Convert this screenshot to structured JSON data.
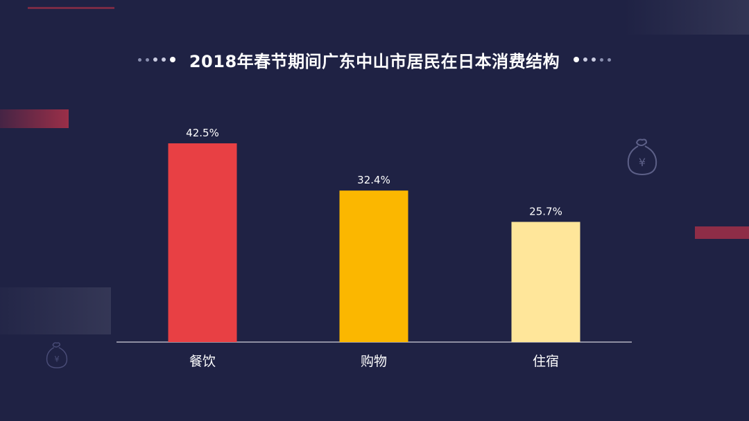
{
  "chart_data": {
    "type": "bar",
    "title": "2018年春节期间广东中山市居民在日本消费结构",
    "categories": [
      "餐饮",
      "购物",
      "住宿"
    ],
    "values": [
      42.5,
      32.4,
      25.7
    ],
    "value_labels": [
      "42.5%",
      "32.4%",
      "25.7%"
    ],
    "colors": [
      "#e84044",
      "#fbb700",
      "#ffe69a"
    ],
    "xlabel": "",
    "ylabel": "",
    "ylim": [
      0,
      50
    ],
    "grid": false,
    "legend": "none"
  },
  "theme": {
    "background": "#1f2244",
    "axis_color": "#ffffff",
    "accent_red": "#a8283c"
  },
  "decorations": {
    "money_bag_symbol": "¥"
  }
}
